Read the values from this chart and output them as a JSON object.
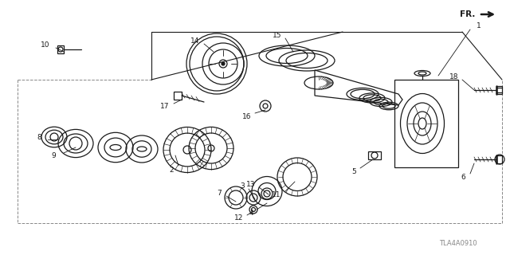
{
  "bg_color": "#ffffff",
  "line_color": "#1a1a1a",
  "gray_color": "#888888",
  "diagram_code": "TLA4A0910",
  "figsize": [
    6.4,
    3.2
  ],
  "dpi": 100
}
